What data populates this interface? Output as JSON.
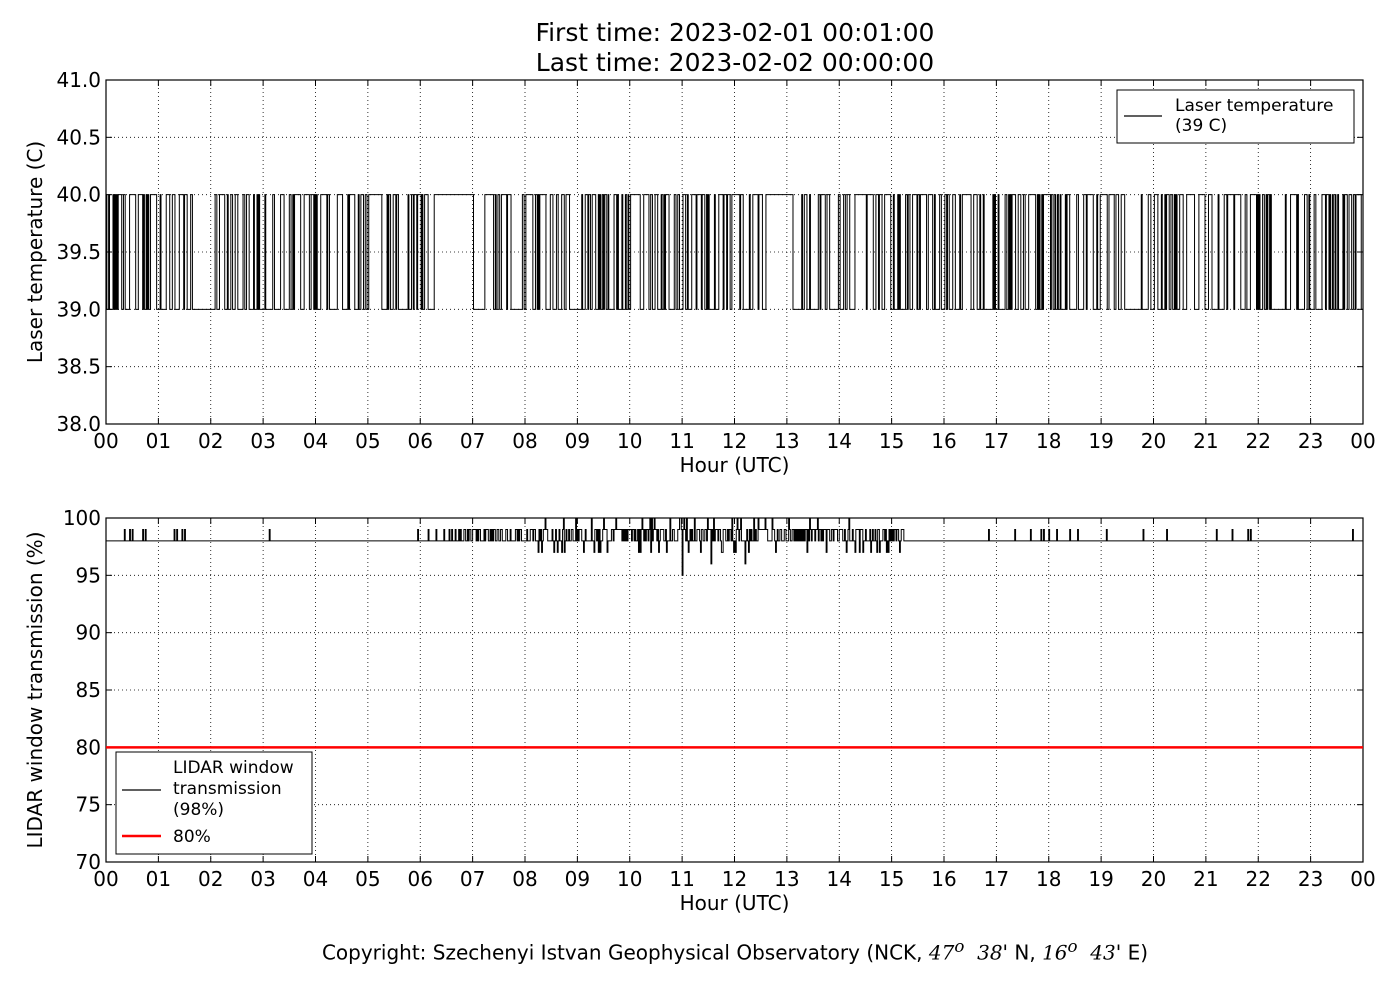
{
  "header": {
    "first_time": "First time: 2023-02-01 00:01:00",
    "last_time": "Last time: 2023-02-02 00:00:00"
  },
  "footer": {
    "prefix": "Copyright: Szechenyi Istvan Geophysical Observatory (NCK, ",
    "lat_deg": "47",
    "lat_sup": "o",
    "lat_min": "38",
    "lat_suffix": "' N, ",
    "lon_deg": "16",
    "lon_sup": "o",
    "lon_min": "43",
    "lon_suffix": "' E)"
  },
  "chart_data": [
    {
      "type": "line",
      "title": "",
      "xlabel": "Hour (UTC)",
      "ylabel": "Laser temperature (C)",
      "xlim": [
        0,
        24
      ],
      "ylim": [
        38.0,
        41.0
      ],
      "x_tick_labels": [
        "00",
        "01",
        "02",
        "03",
        "04",
        "05",
        "06",
        "07",
        "08",
        "09",
        "10",
        "11",
        "12",
        "13",
        "14",
        "15",
        "16",
        "17",
        "18",
        "19",
        "20",
        "21",
        "22",
        "23",
        "00"
      ],
      "y_tick_labels": [
        "41.0",
        "40.5",
        "40.0",
        "39.5",
        "39.0",
        "38.5",
        "38.0"
      ],
      "grid": true,
      "legend": {
        "placement": "top-right",
        "entries": [
          {
            "label_line1": "Laser temperature",
            "label_line2": "(39 C)",
            "color": "#000000"
          }
        ]
      },
      "series": [
        {
          "name": "Laser temperature (39 C)",
          "color": "#000000",
          "note": "minute samples toggling between 39.0 and 40.0",
          "levels": [
            39.0,
            40.0
          ],
          "constant_high_segments": [
            [
              6.25,
              7.0
            ],
            [
              12.6,
              13.0
            ],
            [
              5.0,
              5.25
            ]
          ],
          "constant_low_segments": [
            [
              1.65,
              2.05
            ],
            [
              19.45,
              19.7
            ]
          ]
        }
      ]
    },
    {
      "type": "line",
      "title": "",
      "xlabel": "Hour (UTC)",
      "ylabel": "LIDAR window transmission (%)",
      "xlim": [
        0,
        24
      ],
      "ylim": [
        70,
        100
      ],
      "x_tick_labels": [
        "00",
        "01",
        "02",
        "03",
        "04",
        "05",
        "06",
        "07",
        "08",
        "09",
        "10",
        "11",
        "12",
        "13",
        "14",
        "15",
        "16",
        "17",
        "18",
        "19",
        "20",
        "21",
        "22",
        "23",
        "00"
      ],
      "y_tick_labels": [
        "100",
        "95",
        "90",
        "85",
        "80",
        "75",
        "70"
      ],
      "grid": true,
      "legend": {
        "placement": "lower-left",
        "entries": [
          {
            "label_lines": [
              "LIDAR window",
              "transmission",
              "(98%)"
            ],
            "color": "#000000"
          },
          {
            "label_lines": [
              "80%"
            ],
            "color": "#ff0000"
          }
        ]
      },
      "series": [
        {
          "name": "LIDAR window transmission (98%)",
          "color": "#000000",
          "baseline": 98,
          "spikes_to_99": [
            0.35,
            0.45,
            0.5,
            0.7,
            0.75,
            1.3,
            1.35,
            1.45,
            1.5,
            3.12,
            5.95,
            6.15,
            6.3,
            6.45,
            6.55,
            16.85,
            17.35,
            17.65,
            17.85,
            17.9,
            18.0,
            18.15,
            18.4,
            18.55,
            19.1,
            19.8,
            20.25,
            21.2,
            21.5,
            21.8,
            21.85,
            23.8
          ],
          "dense_noise_range": [
            6.5,
            15.25
          ],
          "dips": [
            [
              8.25,
              97
            ],
            [
              8.7,
              97
            ],
            [
              9.4,
              97
            ],
            [
              10.2,
              97
            ],
            [
              11.0,
              95
            ],
            [
              11.55,
              96
            ],
            [
              12.2,
              96
            ],
            [
              13.75,
              97
            ],
            [
              14.6,
              97
            ],
            [
              15.15,
              97
            ]
          ]
        },
        {
          "name": "80%",
          "color": "#ff0000",
          "constant": 80
        }
      ]
    }
  ]
}
